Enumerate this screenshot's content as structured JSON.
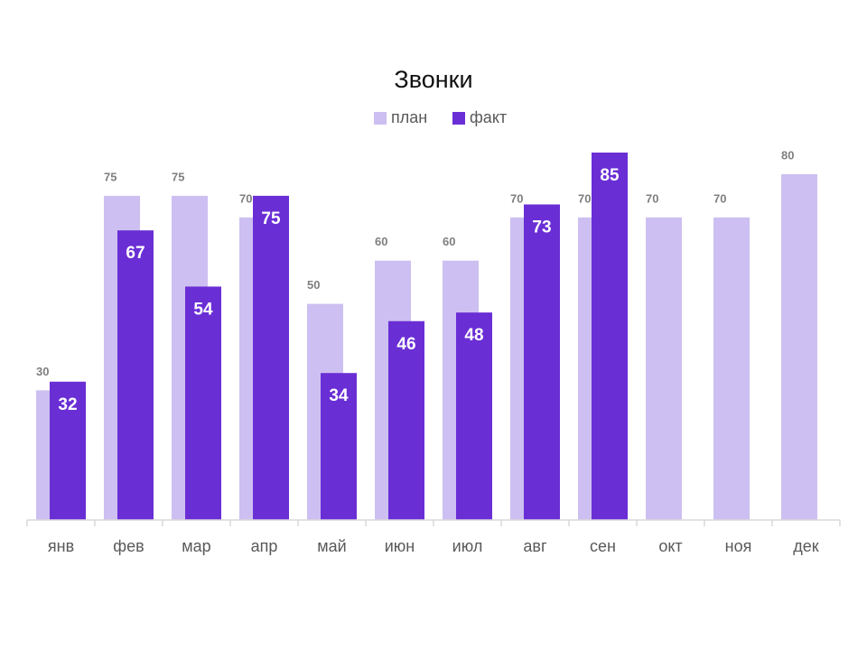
{
  "chart_data": {
    "type": "bar",
    "title": "Звонки",
    "categories": [
      "янв",
      "фев",
      "мар",
      "апр",
      "май",
      "июн",
      "июл",
      "авг",
      "сен",
      "окт",
      "ноя",
      "дек"
    ],
    "series": [
      {
        "name": "план",
        "color": "#cdbff1",
        "values": [
          30,
          75,
          75,
          70,
          50,
          60,
          60,
          70,
          70,
          70,
          70,
          80
        ]
      },
      {
        "name": "факт",
        "color": "#6a2ed5",
        "values": [
          32,
          67,
          54,
          75,
          34,
          46,
          48,
          73,
          85,
          null,
          null,
          null
        ]
      }
    ],
    "ylim": [
      0,
      85
    ]
  }
}
